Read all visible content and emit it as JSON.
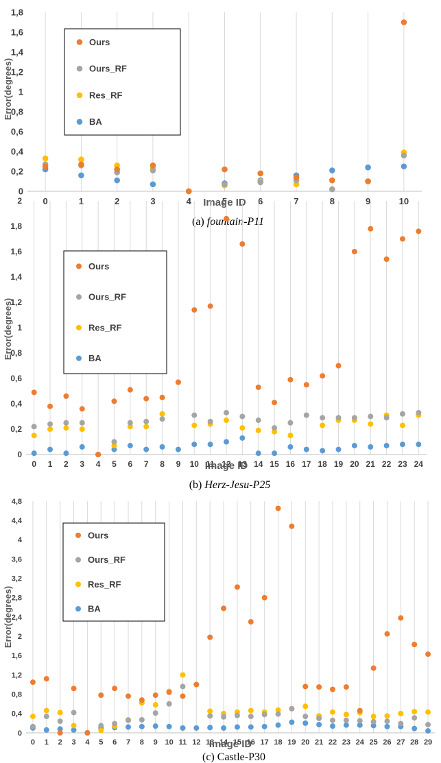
{
  "colors": {
    "Ours": "#ED7D31",
    "Ours_RF": "#A5A5A5",
    "Res_RF": "#FFC000",
    "BA": "#5B9BD5",
    "grid": "#D9D9D9"
  },
  "chart_data": [
    {
      "type": "scatter",
      "caption_prefix": "(a)",
      "caption_name": "fountain-P11",
      "caption_italic": true,
      "xlabel": "Image ID",
      "ylabel": "Error(degrees)",
      "x": [
        0,
        1,
        2,
        3,
        4,
        5,
        6,
        7,
        8,
        9,
        10
      ],
      "ylim": [
        0,
        1.8
      ],
      "yticks": [
        "0",
        "0,2",
        "0,4",
        "0,6",
        "0,8",
        "1",
        "1,2",
        "1,4",
        "1,6",
        "1,8"
      ],
      "grid": "vertical",
      "legend": "top-left",
      "series": [
        {
          "name": "Ours",
          "values": [
            0.25,
            0.27,
            0.22,
            0.26,
            0.0,
            0.22,
            0.18,
            0.14,
            0.11,
            0.1,
            1.7
          ]
        },
        {
          "name": "Ours_RF",
          "values": [
            0.27,
            0.26,
            0.19,
            0.21,
            0.0,
            0.07,
            0.09,
            0.11,
            0.02,
            0.1,
            0.36
          ]
        },
        {
          "name": "Res_RF",
          "values": [
            0.33,
            0.32,
            0.26,
            0.24,
            0.0,
            0.06,
            0.1,
            0.07,
            0.11,
            0.1,
            0.39
          ]
        },
        {
          "name": "BA",
          "values": [
            0.22,
            0.16,
            0.11,
            0.07,
            0.0,
            0.08,
            0.11,
            0.16,
            0.21,
            0.24,
            0.25
          ]
        }
      ]
    },
    {
      "type": "scatter",
      "caption_prefix": "(b)",
      "caption_name": "Herz-Jesu-P25",
      "caption_italic": true,
      "xlabel": "Image ID",
      "ylabel": "Error(degrees)",
      "x": [
        0,
        1,
        2,
        3,
        4,
        5,
        6,
        7,
        8,
        9,
        10,
        11,
        12,
        13,
        14,
        15,
        16,
        17,
        18,
        19,
        20,
        21,
        22,
        23,
        24
      ],
      "ylim": [
        0,
        2
      ],
      "yticks": [
        "0",
        "0,2",
        "0,4",
        "0,6",
        "0,8",
        "1",
        "1,2",
        "1,4",
        "1,6",
        "1,8",
        "2"
      ],
      "grid": "vertical",
      "legend": "top-left",
      "series": [
        {
          "name": "Ours",
          "values": [
            0.49,
            0.38,
            0.46,
            0.36,
            0.0,
            0.42,
            0.51,
            0.44,
            0.45,
            0.57,
            1.14,
            1.17,
            1.86,
            1.66,
            0.53,
            0.41,
            0.59,
            0.55,
            0.62,
            0.7,
            1.6,
            1.78,
            1.54,
            1.7,
            1.76
          ]
        },
        {
          "name": "Ours_RF",
          "values": [
            0.22,
            0.24,
            0.25,
            0.25,
            0.0,
            0.1,
            0.25,
            0.26,
            0.28,
            0.57,
            0.31,
            0.26,
            0.33,
            0.3,
            0.27,
            0.21,
            0.25,
            0.31,
            0.29,
            0.29,
            0.29,
            0.3,
            0.29,
            0.32,
            0.33
          ]
        },
        {
          "name": "Res_RF",
          "values": [
            0.15,
            0.2,
            0.21,
            0.2,
            0.0,
            0.07,
            0.22,
            0.22,
            0.32,
            0.57,
            0.23,
            0.24,
            0.27,
            0.21,
            0.19,
            0.18,
            0.15,
            0.31,
            0.23,
            0.27,
            0.27,
            0.24,
            0.31,
            0.23,
            0.31
          ]
        },
        {
          "name": "BA",
          "values": [
            0.01,
            0.04,
            0.01,
            0.06,
            0.0,
            0.04,
            0.07,
            0.04,
            0.06,
            0.04,
            0.08,
            0.08,
            0.1,
            0.13,
            0.01,
            0.01,
            0.06,
            0.04,
            0.03,
            0.04,
            0.07,
            0.06,
            0.07,
            0.08,
            0.08
          ]
        }
      ]
    },
    {
      "type": "scatter",
      "caption_prefix": "(c)",
      "caption_name": "Castle-P30",
      "caption_italic": false,
      "xlabel": "Image ID",
      "ylabel": "Error(degrees)",
      "x": [
        0,
        1,
        2,
        3,
        4,
        5,
        6,
        7,
        8,
        9,
        10,
        11,
        12,
        13,
        14,
        15,
        16,
        17,
        18,
        19,
        20,
        21,
        22,
        23,
        24,
        25,
        26,
        27,
        28,
        29
      ],
      "ylim": [
        0,
        4.8
      ],
      "yticks": [
        "0",
        "0,4",
        "0,8",
        "1,2",
        "1,6",
        "2",
        "2,4",
        "2,8",
        "3,2",
        "3,6",
        "4",
        "4,4",
        "4,8"
      ],
      "grid": "vertical",
      "legend": "top-left",
      "series": [
        {
          "name": "Ours",
          "values": [
            1.05,
            1.12,
            0.0,
            0.92,
            0.0,
            0.78,
            0.92,
            0.76,
            0.68,
            0.78,
            0.84,
            0.76,
            1.0,
            1.98,
            2.58,
            3.02,
            2.3,
            2.8,
            4.65,
            4.28,
            0.96,
            0.95,
            0.9,
            0.95,
            0.46,
            1.34,
            2.05,
            2.38,
            1.83,
            1.63
          ]
        },
        {
          "name": "Ours_RF",
          "values": [
            0.13,
            0.34,
            0.24,
            0.42,
            0.0,
            0.15,
            0.19,
            0.26,
            0.27,
            0.41,
            0.6,
            0.96,
            1.0,
            0.35,
            0.33,
            0.36,
            0.34,
            0.38,
            0.39,
            0.5,
            0.34,
            0.3,
            0.26,
            0.26,
            0.25,
            0.23,
            0.24,
            0.19,
            0.31,
            0.17
          ]
        },
        {
          "name": "Res_RF",
          "values": [
            0.34,
            0.46,
            0.42,
            0.15,
            0.0,
            0.05,
            0.14,
            0.27,
            0.62,
            0.58,
            0.86,
            1.2,
            1.0,
            0.45,
            0.4,
            0.43,
            0.46,
            0.43,
            0.47,
            0.5,
            0.55,
            0.35,
            0.43,
            0.38,
            0.42,
            0.34,
            0.35,
            0.4,
            0.44,
            0.43
          ]
        },
        {
          "name": "BA",
          "values": [
            0.1,
            0.06,
            0.08,
            0.06,
            0.0,
            0.1,
            0.11,
            0.12,
            0.13,
            0.14,
            0.13,
            0.1,
            0.1,
            0.11,
            0.1,
            0.12,
            0.12,
            0.13,
            0.16,
            0.22,
            0.2,
            0.17,
            0.14,
            0.16,
            0.16,
            0.15,
            0.13,
            0.13,
            0.09,
            0.04
          ]
        }
      ]
    }
  ]
}
